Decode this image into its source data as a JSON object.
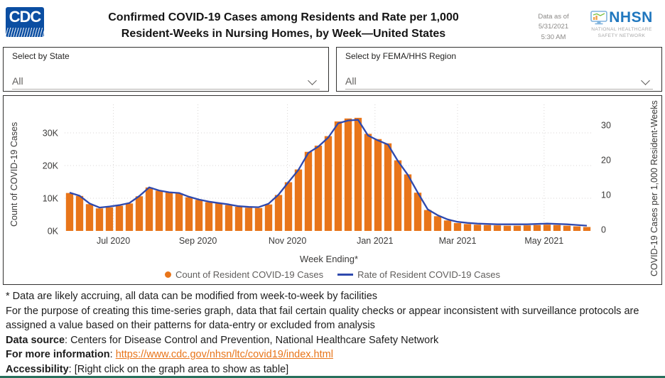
{
  "header": {
    "cdc_logo_text": "CDC",
    "title_line1": "Confirmed COVID-19 Cases among Residents and Rate per 1,000",
    "title_line2": "Resident-Weeks in Nursing Homes, by Week—United States",
    "data_as_of_line1": "Data as of 5/31/2021",
    "data_as_of_line2": "5:30 AM",
    "nhsn_logo_text": "NHSN",
    "nhsn_sub_line1": "NATIONAL HEALTHCARE",
    "nhsn_sub_line2": "SAFETY NETWORK"
  },
  "filters": [
    {
      "label": "Select by State",
      "value": "All"
    },
    {
      "label": "Select by FEMA/HHS Region",
      "value": "All"
    }
  ],
  "chart_data": {
    "type": "bar",
    "subtype": "weekly bar series with overlaid line on secondary axis",
    "title": "Confirmed COVID-19 Cases among Residents and Rate per 1,000 Resident-Weeks in Nursing Homes, by Week—United States",
    "xlabel": "Week Ending*",
    "ylabel_left": "Count of COVID-19 Cases",
    "ylabel_right": "COVID-19 Cases per 1,000 Resident-Weeks",
    "y_left_ticks": [
      "0K",
      "10K",
      "20K",
      "30K"
    ],
    "y_right_ticks": [
      "0",
      "10",
      "20",
      "30"
    ],
    "ylim_left_counts": [
      0,
      41000
    ],
    "ylim_right_rate": [
      0,
      37
    ],
    "n_weeks": 53,
    "grid": "dotted horizontal lines at 10K/20K/30K and dotted vertical lines at month ticks",
    "legend_position": "bottom center",
    "x_ticks": [
      {
        "label": "Jul 2020",
        "bar_index": 4.4
      },
      {
        "label": "Sep 2020",
        "bar_index": 12.9
      },
      {
        "label": "Nov 2020",
        "bar_index": 21.9
      },
      {
        "label": "Jan 2021",
        "bar_index": 30.7
      },
      {
        "label": "Mar 2021",
        "bar_index": 39.0
      },
      {
        "label": "May 2021",
        "bar_index": 47.7
      }
    ],
    "series": [
      {
        "name": "Count of Resident COVID-19 Cases",
        "type": "bar",
        "axis": "left",
        "color": "#E8751A",
        "values_thousands": [
          11.6,
          10.7,
          8.2,
          6.9,
          7.2,
          7.7,
          8.4,
          10.6,
          13.3,
          12.3,
          11.8,
          11.5,
          10.3,
          9.5,
          8.8,
          8.4,
          7.9,
          7.4,
          7.1,
          7.0,
          8.1,
          11.0,
          14.9,
          18.8,
          24.2,
          26.1,
          29.0,
          33.5,
          34.4,
          34.6,
          29.7,
          28.1,
          26.8,
          21.6,
          17.3,
          11.7,
          6.4,
          4.5,
          3.2,
          2.4,
          2.1,
          1.9,
          1.8,
          1.7,
          1.6,
          1.6,
          1.7,
          1.8,
          1.9,
          1.8,
          1.6,
          1.4,
          1.2
        ]
      },
      {
        "name": "Rate of Resident COVID-19 Cases",
        "type": "line",
        "axis": "right",
        "color": "#2E49AE",
        "values_per_1000": [
          10.6,
          9.7,
          7.5,
          6.3,
          6.6,
          7.0,
          7.6,
          9.6,
          12.1,
          11.2,
          10.7,
          10.5,
          9.4,
          8.6,
          8.0,
          7.6,
          7.2,
          6.7,
          6.5,
          6.4,
          7.4,
          10.0,
          13.6,
          17.1,
          22.0,
          23.8,
          26.4,
          30.5,
          31.3,
          31.5,
          27.0,
          25.6,
          24.4,
          19.7,
          15.7,
          10.6,
          5.8,
          4.1,
          2.9,
          2.2,
          1.9,
          1.7,
          1.6,
          1.5,
          1.5,
          1.5,
          1.5,
          1.6,
          1.7,
          1.6,
          1.5,
          1.3,
          1.1
        ]
      }
    ]
  },
  "legend": [
    {
      "label": "Count of Resident COVID-19 Cases",
      "marker": "dot",
      "color": "#E8751A"
    },
    {
      "label": "Rate of Resident COVID-19 Cases",
      "marker": "line",
      "color": "#2E49AE"
    }
  ],
  "footer": {
    "note1": "* Data are likely accruing, all data can be modified from week-to-week by facilities",
    "note2": "For the purpose of creating this time-series graph, data that fail certain quality checks or appear inconsistent with surveillance protocols are assigned a value based on their patterns for data-entry or excluded from analysis",
    "data_source_label": "Data source",
    "data_source_text": ": Centers for Disease Control and Prevention, National Healthcare Safety Network",
    "info_label": "For more information",
    "info_separator": ": ",
    "info_link": "https://www.cdc.gov/nhsn/ltc/covid19/index.html",
    "accessibility_label": "Accessibility",
    "accessibility_text": ": [Right click on the graph area to show as table]"
  }
}
